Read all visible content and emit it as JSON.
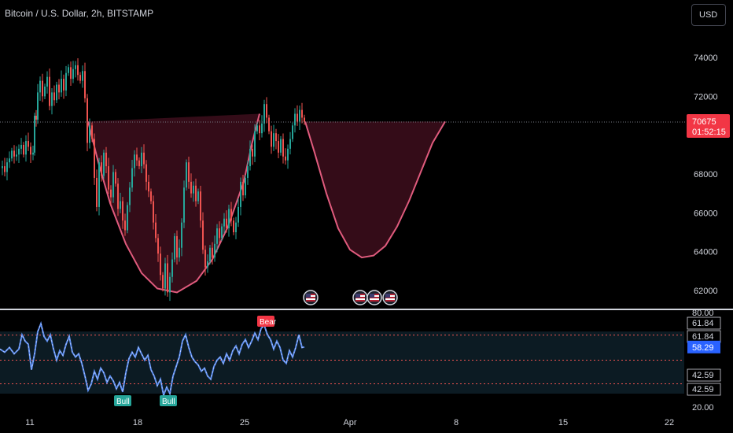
{
  "header": {
    "symbol_title": "Bitcoin / U.S. Dollar, 2h, BITSTAMP",
    "currency_button": "USD"
  },
  "colors": {
    "up": "#26a69a",
    "down": "#ef5350",
    "pattern_fill": "#3d0e1c",
    "pattern_stroke": "#e05b7d",
    "rsi_line": "#5b8def",
    "last_price_bg": "#f23645",
    "bull_badge": "#26a69a",
    "bear_badge": "#f23645"
  },
  "chart_data": [
    {
      "type": "line",
      "title": "Bitcoin / U.S. Dollar, 2h, BITSTAMP",
      "x_ticks": [
        "11",
        "18",
        "25",
        "Apr",
        "8",
        "15",
        "22"
      ],
      "y_ticks": [
        "74000",
        "72000",
        "68000",
        "66000",
        "64000",
        "62000"
      ],
      "ylim": [
        61000,
        75500
      ],
      "last_price": "70675",
      "countdown": "01:52:15",
      "close_path": [
        [
          0,
          68300
        ],
        [
          3,
          68400
        ],
        [
          6,
          68100
        ],
        [
          9,
          68600
        ],
        [
          12,
          68800
        ],
        [
          15,
          69200
        ],
        [
          18,
          68900
        ],
        [
          21,
          69000
        ],
        [
          24,
          69300
        ],
        [
          27,
          69500
        ],
        [
          30,
          69000
        ],
        [
          33,
          69700
        ],
        [
          36,
          69400
        ],
        [
          39,
          69000
        ],
        [
          42,
          69100
        ],
        [
          44,
          71000
        ],
        [
          46,
          70800
        ],
        [
          48,
          72200
        ],
        [
          51,
          72800
        ],
        [
          54,
          72000
        ],
        [
          57,
          72500
        ],
        [
          60,
          73000
        ],
        [
          63,
          71500
        ],
        [
          66,
          72200
        ],
        [
          69,
          71800
        ],
        [
          72,
          72600
        ],
        [
          75,
          72200
        ],
        [
          78,
          72900
        ],
        [
          81,
          72300
        ],
        [
          84,
          73200
        ],
        [
          87,
          73500
        ],
        [
          90,
          72900
        ],
        [
          93,
          73400
        ],
        [
          96,
          73600
        ],
        [
          99,
          73100
        ],
        [
          102,
          72800
        ],
        [
          105,
          73300
        ],
        [
          108,
          71900
        ],
        [
          111,
          69600
        ],
        [
          114,
          70500
        ],
        [
          117,
          69800
        ],
        [
          120,
          67800
        ],
        [
          123,
          66300
        ],
        [
          126,
          68600
        ],
        [
          129,
          67900
        ],
        [
          132,
          69100
        ],
        [
          135,
          68400
        ],
        [
          138,
          67200
        ],
        [
          141,
          66800
        ],
        [
          144,
          68100
        ],
        [
          147,
          67500
        ],
        [
          150,
          66200
        ],
        [
          153,
          66600
        ],
        [
          156,
          65600
        ],
        [
          159,
          65100
        ],
        [
          162,
          66400
        ],
        [
          165,
          67300
        ],
        [
          168,
          68300
        ],
        [
          171,
          69000
        ],
        [
          174,
          68700
        ],
        [
          177,
          68400
        ],
        [
          180,
          69100
        ],
        [
          183,
          68500
        ],
        [
          186,
          67600
        ],
        [
          189,
          67100
        ],
        [
          192,
          66600
        ],
        [
          195,
          65500
        ],
        [
          198,
          64700
        ],
        [
          201,
          63900
        ],
        [
          204,
          62800
        ],
        [
          207,
          62100
        ],
        [
          210,
          63400
        ],
        [
          213,
          61900
        ],
        [
          216,
          62700
        ],
        [
          219,
          63600
        ],
        [
          222,
          64800
        ],
        [
          225,
          63700
        ],
        [
          228,
          64200
        ],
        [
          231,
          65500
        ],
        [
          234,
          67300
        ],
        [
          237,
          68600
        ],
        [
          240,
          67600
        ],
        [
          243,
          67000
        ],
        [
          246,
          67400
        ],
        [
          249,
          66600
        ],
        [
          252,
          67100
        ],
        [
          255,
          65600
        ],
        [
          258,
          64100
        ],
        [
          261,
          63200
        ],
        [
          264,
          63500
        ],
        [
          267,
          64200
        ],
        [
          270,
          63700
        ],
        [
          273,
          64400
        ],
        [
          276,
          65200
        ],
        [
          279,
          64700
        ],
        [
          282,
          65300
        ],
        [
          285,
          65700
        ],
        [
          288,
          65200
        ],
        [
          291,
          66200
        ],
        [
          294,
          65600
        ],
        [
          297,
          65000
        ],
        [
          300,
          65500
        ],
        [
          303,
          66300
        ],
        [
          306,
          67600
        ],
        [
          309,
          66900
        ],
        [
          312,
          67800
        ],
        [
          315,
          68400
        ],
        [
          318,
          69300
        ],
        [
          321,
          68900
        ],
        [
          324,
          70200
        ],
        [
          327,
          70500
        ],
        [
          330,
          70100
        ],
        [
          333,
          70600
        ],
        [
          336,
          71600
        ],
        [
          339,
          70900
        ],
        [
          342,
          70200
        ],
        [
          345,
          69400
        ],
        [
          348,
          70100
        ],
        [
          351,
          69700
        ],
        [
          354,
          69100
        ],
        [
          357,
          69800
        ],
        [
          360,
          68900
        ],
        [
          363,
          68700
        ],
        [
          366,
          69300
        ],
        [
          369,
          69800
        ],
        [
          372,
          70500
        ],
        [
          375,
          71100
        ],
        [
          378,
          70700
        ],
        [
          381,
          71300
        ],
        [
          384,
          70900
        ],
        [
          387,
          70675
        ]
      ],
      "pattern_curve": [
        [
          112,
          70700
        ],
        [
          125,
          68600
        ],
        [
          140,
          66500
        ],
        [
          160,
          64400
        ],
        [
          180,
          62900
        ],
        [
          200,
          62100
        ],
        [
          225,
          61900
        ],
        [
          250,
          62500
        ],
        [
          270,
          63600
        ],
        [
          290,
          65300
        ],
        [
          310,
          67600
        ],
        [
          320,
          69500
        ],
        [
          330,
          71100
        ]
      ],
      "projection_curve": [
        [
          388,
          70700
        ],
        [
          400,
          69100
        ],
        [
          415,
          67000
        ],
        [
          430,
          65200
        ],
        [
          445,
          64100
        ],
        [
          460,
          63700
        ],
        [
          475,
          63800
        ],
        [
          490,
          64300
        ],
        [
          505,
          65300
        ],
        [
          520,
          66600
        ],
        [
          535,
          68100
        ],
        [
          550,
          69600
        ],
        [
          566,
          70700
        ]
      ],
      "event_icon_positions": [
        395,
        458,
        476,
        496
      ]
    },
    {
      "type": "line",
      "title": "",
      "y_ticks": [
        "80.00",
        "20.00"
      ],
      "level_labels": [
        "61.84",
        "61.84",
        "42.59",
        "42.59"
      ],
      "levels": [
        61.84,
        42.59
      ],
      "ylim": [
        20,
        80
      ],
      "last_value": "58.29",
      "signals": [
        {
          "label": "Bull",
          "x": 155,
          "value": 28
        },
        {
          "label": "Bull",
          "x": 213,
          "value": 26
        },
        {
          "label": "Bear",
          "x": 337,
          "value": 74
        }
      ],
      "values": [
        [
          0,
          57
        ],
        [
          6,
          55
        ],
        [
          12,
          58
        ],
        [
          18,
          54
        ],
        [
          24,
          57
        ],
        [
          28,
          66
        ],
        [
          32,
          62
        ],
        [
          36,
          60
        ],
        [
          40,
          44
        ],
        [
          44,
          54
        ],
        [
          48,
          68
        ],
        [
          52,
          73
        ],
        [
          56,
          65
        ],
        [
          60,
          62
        ],
        [
          64,
          66
        ],
        [
          68,
          57
        ],
        [
          72,
          50
        ],
        [
          76,
          56
        ],
        [
          80,
          53
        ],
        [
          84,
          60
        ],
        [
          88,
          65
        ],
        [
          92,
          55
        ],
        [
          96,
          52
        ],
        [
          100,
          54
        ],
        [
          104,
          48
        ],
        [
          108,
          40
        ],
        [
          112,
          31
        ],
        [
          116,
          35
        ],
        [
          120,
          43
        ],
        [
          124,
          38
        ],
        [
          128,
          45
        ],
        [
          132,
          42
        ],
        [
          136,
          36
        ],
        [
          140,
          40
        ],
        [
          144,
          37
        ],
        [
          148,
          32
        ],
        [
          152,
          36
        ],
        [
          156,
          30
        ],
        [
          160,
          42
        ],
        [
          164,
          51
        ],
        [
          168,
          55
        ],
        [
          172,
          52
        ],
        [
          176,
          58
        ],
        [
          180,
          54
        ],
        [
          184,
          50
        ],
        [
          188,
          53
        ],
        [
          192,
          44
        ],
        [
          196,
          40
        ],
        [
          200,
          34
        ],
        [
          204,
          38
        ],
        [
          208,
          28
        ],
        [
          212,
          33
        ],
        [
          216,
          29
        ],
        [
          220,
          40
        ],
        [
          224,
          46
        ],
        [
          228,
          52
        ],
        [
          232,
          62
        ],
        [
          236,
          66
        ],
        [
          240,
          58
        ],
        [
          244,
          52
        ],
        [
          248,
          49
        ],
        [
          252,
          47
        ],
        [
          256,
          43
        ],
        [
          260,
          45
        ],
        [
          264,
          40
        ],
        [
          268,
          38
        ],
        [
          272,
          46
        ],
        [
          276,
          50
        ],
        [
          280,
          52
        ],
        [
          284,
          48
        ],
        [
          288,
          54
        ],
        [
          292,
          50
        ],
        [
          296,
          56
        ],
        [
          300,
          59
        ],
        [
          304,
          54
        ],
        [
          308,
          60
        ],
        [
          312,
          63
        ],
        [
          316,
          58
        ],
        [
          320,
          62
        ],
        [
          324,
          67
        ],
        [
          328,
          63
        ],
        [
          332,
          70
        ],
        [
          336,
          72
        ],
        [
          340,
          66
        ],
        [
          344,
          63
        ],
        [
          348,
          57
        ],
        [
          352,
          62
        ],
        [
          356,
          58
        ],
        [
          360,
          50
        ],
        [
          364,
          48
        ],
        [
          368,
          56
        ],
        [
          372,
          52
        ],
        [
          376,
          58
        ],
        [
          380,
          66
        ],
        [
          384,
          58
        ],
        [
          387,
          58.29
        ]
      ]
    }
  ]
}
